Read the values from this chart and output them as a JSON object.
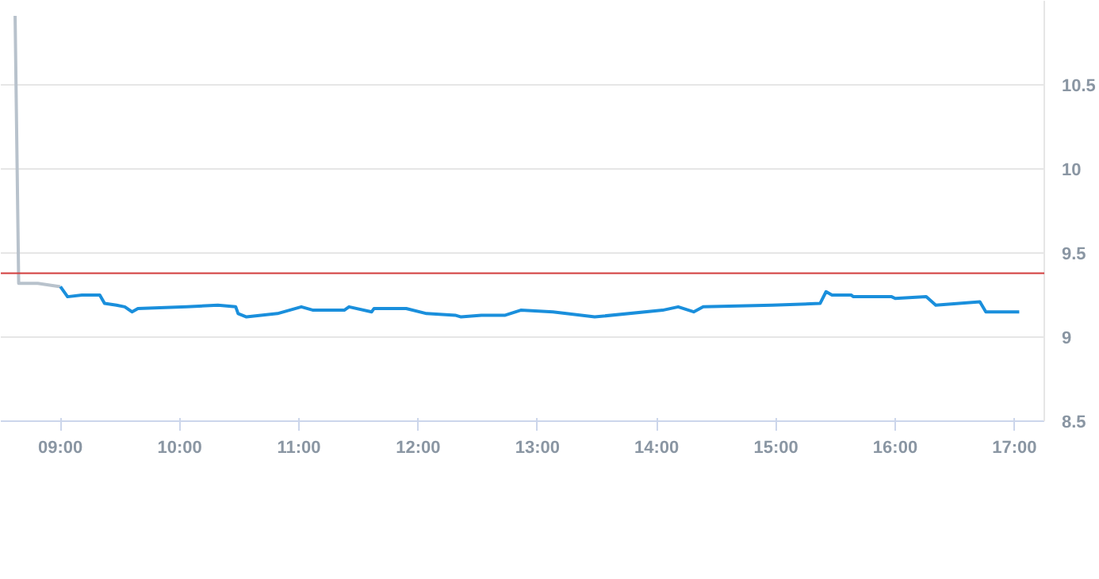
{
  "chart_data": {
    "type": "line",
    "xlim": [
      8.5,
      17.25
    ],
    "ylim": [
      8.5,
      11.0
    ],
    "xticks": [
      {
        "value": 9,
        "label": "09:00"
      },
      {
        "value": 10,
        "label": "10:00"
      },
      {
        "value": 11,
        "label": "11:00"
      },
      {
        "value": 12,
        "label": "12:00"
      },
      {
        "value": 13,
        "label": "13:00"
      },
      {
        "value": 14,
        "label": "14:00"
      },
      {
        "value": 15,
        "label": "15:00"
      },
      {
        "value": 16,
        "label": "16:00"
      },
      {
        "value": 17,
        "label": "17:00"
      }
    ],
    "yticks": [
      8.5,
      9,
      9.5,
      10,
      10.5
    ],
    "grid": "y",
    "marker": "none",
    "line_style": "solid",
    "ref_lines": [
      {
        "axis": "y",
        "value": 9.38,
        "label": null,
        "color": "#d23c3c"
      }
    ],
    "series": [
      {
        "color": "#b8c2cc",
        "x": [
          8.62,
          8.65,
          8.81,
          9.0
        ],
        "values": [
          10.91,
          9.32,
          9.32,
          9.3
        ]
      },
      {
        "color": "#1a8fdc",
        "x": [
          9.0,
          9.06,
          9.18,
          9.33,
          9.37,
          9.47,
          9.54,
          9.6,
          9.65,
          10.06,
          10.32,
          10.47,
          10.49,
          10.56,
          10.82,
          11.02,
          11.12,
          11.38,
          11.42,
          11.61,
          11.63,
          11.9,
          12.07,
          12.31,
          12.36,
          12.53,
          12.73,
          12.86,
          13.13,
          13.48,
          14.05,
          14.18,
          14.31,
          14.39,
          14.97,
          15.37,
          15.42,
          15.47,
          15.63,
          15.65,
          15.97,
          16.0,
          16.26,
          16.34,
          16.71,
          16.76,
          17.04
        ],
        "values": [
          9.3,
          9.24,
          9.25,
          9.25,
          9.2,
          9.19,
          9.18,
          9.15,
          9.17,
          9.18,
          9.19,
          9.18,
          9.14,
          9.12,
          9.14,
          9.18,
          9.16,
          9.16,
          9.18,
          9.15,
          9.17,
          9.17,
          9.14,
          9.13,
          9.12,
          9.13,
          9.13,
          9.16,
          9.15,
          9.12,
          9.16,
          9.18,
          9.15,
          9.18,
          9.19,
          9.2,
          9.27,
          9.25,
          9.25,
          9.24,
          9.24,
          9.23,
          9.24,
          9.19,
          9.21,
          9.15,
          9.15
        ]
      }
    ]
  }
}
